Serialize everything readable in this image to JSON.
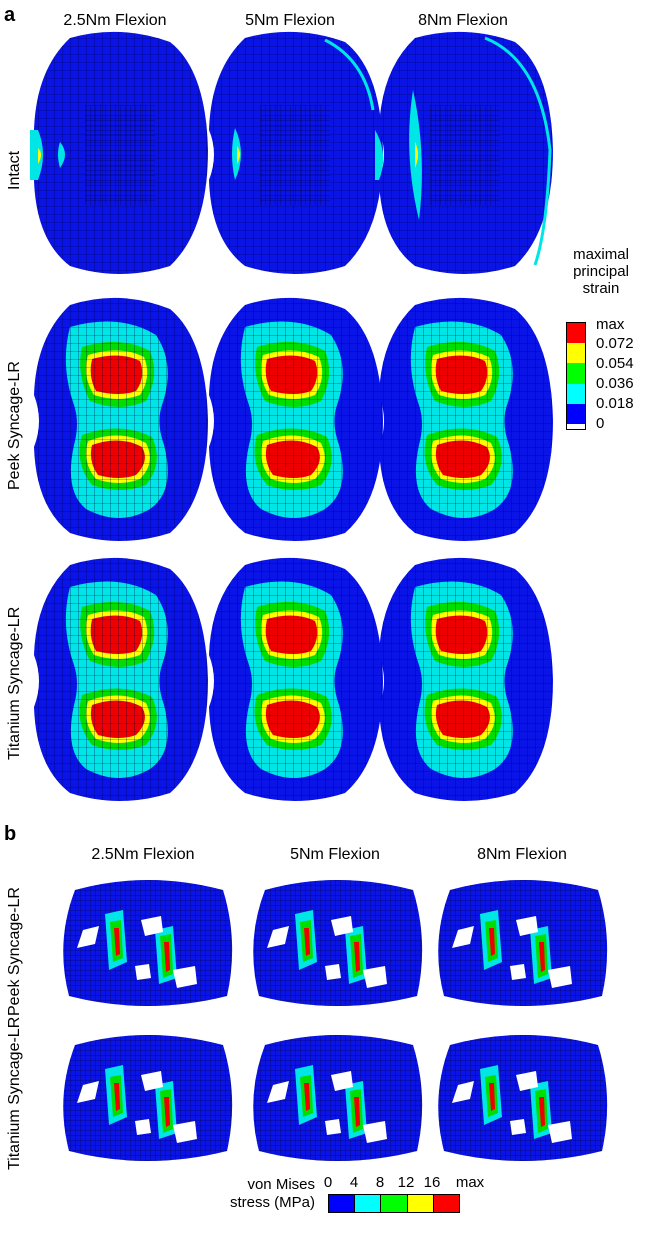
{
  "panel_a": {
    "letter": "a",
    "columns": [
      "2.5Nm Flexion",
      "5Nm Flexion",
      "8Nm Flexion"
    ],
    "rows": [
      "Intact",
      "Peek Syncage-LR",
      "Titanium Syncage-LR"
    ],
    "legend": {
      "title_lines": [
        "maximal",
        "principal",
        "strain"
      ],
      "labels": [
        "max",
        "0.072",
        "0.054",
        "0.036",
        "0.018",
        "0"
      ],
      "colors": [
        "#ff0000",
        "#ffff00",
        "#00ff00",
        "#00ffff",
        "#0000ff"
      ]
    }
  },
  "panel_b": {
    "letter": "b",
    "columns": [
      "2.5Nm Flexion",
      "5Nm Flexion",
      "8Nm Flexion"
    ],
    "rows": [
      "Peek Syncage-LR",
      "Titanium Syncage-LR"
    ],
    "legend": {
      "title_lines": [
        "von Mises",
        "stress (MPa)"
      ],
      "labels": [
        "0",
        "4",
        "8",
        "12",
        "16",
        "max"
      ],
      "colors": [
        "#0000ff",
        "#00ffff",
        "#00ff00",
        "#ffff00",
        "#ff0000"
      ]
    }
  },
  "colors": {
    "mesh_blue": "#0a14e6",
    "mesh_line": "#000050",
    "cyan": "#00e6e6",
    "green": "#00dd00",
    "yellow": "#ffff00",
    "red": "#ee0000"
  }
}
